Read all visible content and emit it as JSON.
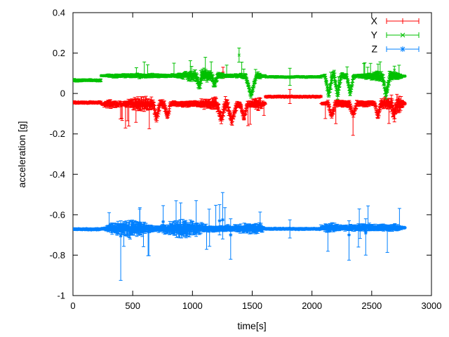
{
  "chart_data": {
    "type": "scatter",
    "style": "errorbars",
    "title": "",
    "xlabel": "time[s]",
    "ylabel": "acceleration [g]",
    "xlim": [
      0,
      3000
    ],
    "ylim": [
      -1,
      0.4
    ],
    "xticks": [
      0,
      500,
      1000,
      1500,
      2000,
      2500,
      3000
    ],
    "yticks": [
      0.4,
      0.2,
      0,
      -0.2,
      -0.4,
      -0.6,
      -0.8,
      -1
    ],
    "grid": false,
    "legend_position": "top-right-inside",
    "background_color": "#ffffff",
    "frame_color": "#000000",
    "x_data_end": 2780,
    "legend": [
      {
        "label": "X",
        "color": "#ff0000",
        "marker": "plus"
      },
      {
        "label": "Y",
        "color": "#00c000",
        "marker": "cross"
      },
      {
        "label": "Z",
        "color": "#0080ff",
        "marker": "star"
      }
    ],
    "series": [
      {
        "name": "X",
        "color": "#ff0000",
        "marker": "plus",
        "tail_direction": -1,
        "t_end": 2780,
        "segments": [
          {
            "t": [
              0,
              235
            ],
            "mean": -0.045,
            "noise": 0.004,
            "err": 0.006,
            "long_err_prob": 0.0
          },
          {
            "t": [
              235,
              1610
            ],
            "mean": -0.052,
            "noise": 0.026,
            "err": 0.03,
            "long_err_prob": 0.05
          },
          {
            "t": [
              1610,
              2075
            ],
            "mean": -0.016,
            "noise": 0.003,
            "err": 0.005,
            "long_err_prob": 0.0
          },
          {
            "t": [
              2075,
              2780
            ],
            "mean": -0.05,
            "noise": 0.024,
            "err": 0.028,
            "long_err_prob": 0.04
          }
        ],
        "dips": [
          {
            "t": 700,
            "w": 30,
            "v": -0.13
          },
          {
            "t": 790,
            "w": 25,
            "v": -0.125
          },
          {
            "t": 1240,
            "w": 35,
            "v": -0.14
          },
          {
            "t": 1330,
            "w": 40,
            "v": -0.15
          },
          {
            "t": 1430,
            "w": 30,
            "v": -0.13
          },
          {
            "t": 2165,
            "w": 30,
            "v": -0.12
          },
          {
            "t": 2345,
            "w": 30,
            "v": -0.115
          },
          {
            "t": 2550,
            "w": 25,
            "v": -0.12
          },
          {
            "t": 2690,
            "w": 25,
            "v": -0.11
          }
        ],
        "spikes": [
          {
            "t": 1256,
            "v": 0.105,
            "lo": 0.075,
            "hi": 0.13
          },
          {
            "t": 1815,
            "v": -0.016,
            "lo": -0.05,
            "hi": 0.02
          }
        ]
      },
      {
        "name": "Y",
        "color": "#00c000",
        "marker": "cross",
        "tail_direction": 1,
        "t_end": 2780,
        "segments": [
          {
            "t": [
              0,
              235
            ],
            "mean": 0.065,
            "noise": 0.004,
            "err": 0.006,
            "long_err_prob": 0.0
          },
          {
            "t": [
              235,
              1610
            ],
            "mean": 0.088,
            "noise": 0.016,
            "err": 0.018,
            "long_err_prob": 0.04
          },
          {
            "t": [
              1610,
              2075
            ],
            "mean": 0.082,
            "noise": 0.003,
            "err": 0.005,
            "long_err_prob": 0.0
          },
          {
            "t": [
              2075,
              2780
            ],
            "mean": 0.086,
            "noise": 0.018,
            "err": 0.02,
            "long_err_prob": 0.04
          }
        ],
        "dips": [
          {
            "t": 1055,
            "w": 25,
            "v": 0.03
          },
          {
            "t": 1185,
            "w": 25,
            "v": 0.035
          },
          {
            "t": 1490,
            "w": 45,
            "v": -0.02
          },
          {
            "t": 2140,
            "w": 30,
            "v": -0.015
          },
          {
            "t": 2215,
            "w": 28,
            "v": -0.02
          },
          {
            "t": 2320,
            "w": 28,
            "v": -0.01
          },
          {
            "t": 2620,
            "w": 30,
            "v": -0.015
          }
        ],
        "spikes": [
          {
            "t": 1390,
            "v": 0.19,
            "lo": 0.155,
            "hi": 0.225
          },
          {
            "t": 1815,
            "v": 0.082,
            "lo": 0.04,
            "hi": 0.125
          },
          {
            "t": 2690,
            "v": 0.115,
            "lo": 0.09,
            "hi": 0.135
          }
        ]
      },
      {
        "name": "Z",
        "color": "#0080ff",
        "marker": "star",
        "tail_direction": 0,
        "t_end": 2780,
        "segments": [
          {
            "t": [
              0,
              235
            ],
            "mean": -0.672,
            "noise": 0.003,
            "err": 0.005,
            "long_err_prob": 0.0
          },
          {
            "t": [
              235,
              1615
            ],
            "mean": -0.669,
            "noise": 0.026,
            "err": 0.034,
            "long_err_prob": 0.06
          },
          {
            "t": [
              1615,
              2075
            ],
            "mean": -0.67,
            "noise": 0.003,
            "err": 0.005,
            "long_err_prob": 0.01
          },
          {
            "t": [
              2075,
              2780
            ],
            "mean": -0.664,
            "noise": 0.024,
            "err": 0.03,
            "long_err_prob": 0.05
          }
        ],
        "dips": [],
        "spikes": [
          {
            "t": 400,
            "v": -0.705,
            "lo": -0.925,
            "hi": -0.63
          },
          {
            "t": 560,
            "v": -0.64,
            "lo": -0.7,
            "hi": -0.565
          },
          {
            "t": 755,
            "v": -0.635,
            "lo": -0.69,
            "hi": -0.555
          },
          {
            "t": 1227,
            "v": -0.63,
            "lo": -0.7,
            "hi": -0.55
          },
          {
            "t": 1253,
            "v": -0.625,
            "lo": -0.72,
            "hi": -0.49
          },
          {
            "t": 1320,
            "v": -0.7,
            "lo": -0.82,
            "hi": -0.62
          },
          {
            "t": 1815,
            "v": -0.668,
            "lo": -0.715,
            "hi": -0.625
          },
          {
            "t": 2310,
            "v": -0.7,
            "lo": -0.825,
            "hi": -0.63
          },
          {
            "t": 2450,
            "v": -0.69,
            "lo": -0.8,
            "hi": -0.62
          }
        ]
      }
    ]
  }
}
